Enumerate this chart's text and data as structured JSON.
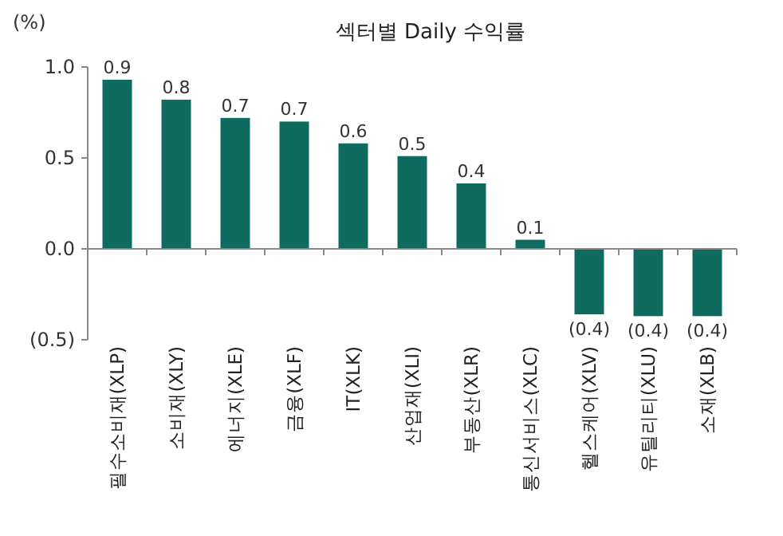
{
  "chart_data": {
    "type": "bar",
    "title": "섹터별 Daily 수익률",
    "ylabel": "(%)",
    "categories": [
      "필수소비재(XLP)",
      "소비재(XLY)",
      "에너지(XLE)",
      "금융(XLF)",
      "IT(XLK)",
      "산업재(XLI)",
      "부동산(XLR)",
      "통신서비스(XLC)",
      "헬스케어(XLV)",
      "유틸리티(XLU)",
      "소재(XLB)"
    ],
    "values": [
      0.93,
      0.82,
      0.72,
      0.7,
      0.58,
      0.51,
      0.36,
      0.05,
      -0.36,
      -0.37,
      -0.37
    ],
    "value_labels": [
      "0.9",
      "0.8",
      "0.7",
      "0.7",
      "0.6",
      "0.5",
      "0.4",
      "0.1",
      "(0.4)",
      "(0.4)",
      "(0.4)"
    ],
    "color": "#0f6b5f",
    "ylim": [
      -0.5,
      1.0
    ],
    "yticks": [
      {
        "value": 1.0,
        "label": "1.0"
      },
      {
        "value": 0.5,
        "label": "0.5"
      },
      {
        "value": 0.0,
        "label": "0.0"
      },
      {
        "value": -0.5,
        "label": "(0.5)"
      }
    ]
  }
}
